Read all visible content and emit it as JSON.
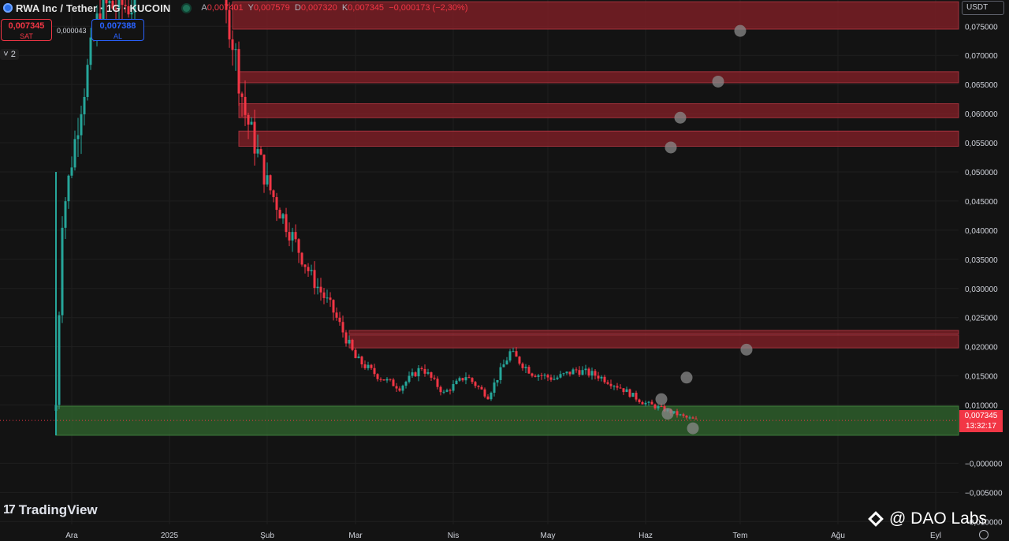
{
  "header": {
    "title": "RWA Inc / Tether · 1G · KUCOIN",
    "ohlc": [
      {
        "k": "A",
        "v": "0,007401"
      },
      {
        "k": "Y",
        "v": "0,007579"
      },
      {
        "k": "D",
        "v": "0,007320"
      },
      {
        "k": "K",
        "v": "0,007345"
      }
    ],
    "change": "−0,000173 (−2,30%)"
  },
  "trade": {
    "sell_price": "0,007345",
    "sell_label": "SAT",
    "spread": "0,000043",
    "buy_price": "0,007388",
    "buy_label": "AL"
  },
  "collapse_label": "2",
  "currency": "USDT",
  "last_price_tag": {
    "price": "0,007345",
    "countdown": "13:32:17"
  },
  "branding": {
    "tv_logo": "TradingView",
    "watermark": "@ DAO Labs"
  },
  "colors": {
    "up": "#26a69a",
    "down": "#f23645",
    "resistance_zone": "#7a1f26",
    "support_zone": "#2c5a2a",
    "background": "#131313"
  },
  "chart_data": {
    "type": "candlestick",
    "y_ticks": [
      {
        "v": 0.075,
        "label": "0,075000"
      },
      {
        "v": 0.07,
        "label": "0,070000"
      },
      {
        "v": 0.065,
        "label": "0,065000"
      },
      {
        "v": 0.06,
        "label": "0,060000"
      },
      {
        "v": 0.055,
        "label": "0,055000"
      },
      {
        "v": 0.05,
        "label": "0,050000"
      },
      {
        "v": 0.045,
        "label": "0,045000"
      },
      {
        "v": 0.04,
        "label": "0,040000"
      },
      {
        "v": 0.035,
        "label": "0,035000"
      },
      {
        "v": 0.03,
        "label": "0,030000"
      },
      {
        "v": 0.025,
        "label": "0,025000"
      },
      {
        "v": 0.02,
        "label": "0,020000"
      },
      {
        "v": 0.015,
        "label": "0,015000"
      },
      {
        "v": 0.01,
        "label": "0,010000"
      },
      {
        "v": 0.0,
        "label": "−0,000000"
      },
      {
        "v": -0.005,
        "label": "−0,005000"
      },
      {
        "v": -0.01,
        "label": "−0,010000"
      }
    ],
    "ylim": [
      -0.0105,
      0.0795
    ],
    "x_ticks": [
      "Ara",
      "2025",
      "Şub",
      "Mar",
      "Nis",
      "May",
      "Haz",
      "Tem",
      "Ağu",
      "Eyl"
    ],
    "resistance_zones": [
      [
        0.0745,
        0.0792
      ],
      [
        0.0653,
        0.0672
      ],
      [
        0.0593,
        0.0617
      ],
      [
        0.0544,
        0.057
      ],
      [
        0.0198,
        0.022
      ],
      [
        0.0222,
        0.0228
      ]
    ],
    "support_zone": [
      0.0048,
      0.0098
    ],
    "markers": [
      {
        "date": "2025-07-01",
        "y": 0.0742
      },
      {
        "date": "2025-06-24",
        "y": 0.0655
      },
      {
        "date": "2025-06-12",
        "y": 0.0593
      },
      {
        "date": "2025-06-09",
        "y": 0.0542
      },
      {
        "date": "2025-07-03",
        "y": 0.0195
      },
      {
        "date": "2025-06-14",
        "y": 0.0147
      },
      {
        "date": "2025-06-06",
        "y": 0.011
      },
      {
        "date": "2025-06-08",
        "y": 0.0085
      },
      {
        "date": "2025-06-16",
        "y": 0.006
      }
    ],
    "last_price": 0.007345,
    "anchors": [
      {
        "date": "2024-11-26",
        "close": 0.01
      },
      {
        "date": "2024-11-28",
        "close": 0.042
      },
      {
        "date": "2024-12-04",
        "close": 0.062
      },
      {
        "date": "2024-12-10",
        "close": 0.078
      },
      {
        "date": "2024-12-20",
        "close": 0.079
      },
      {
        "date": "2025-01-20",
        "close": 0.076
      },
      {
        "date": "2025-01-25",
        "close": 0.06
      },
      {
        "date": "2025-02-01",
        "close": 0.048
      },
      {
        "date": "2025-02-08",
        "close": 0.04
      },
      {
        "date": "2025-02-15",
        "close": 0.032
      },
      {
        "date": "2025-02-22",
        "close": 0.026
      },
      {
        "date": "2025-03-01",
        "close": 0.018
      },
      {
        "date": "2025-03-08",
        "close": 0.015
      },
      {
        "date": "2025-03-15",
        "close": 0.013
      },
      {
        "date": "2025-03-22",
        "close": 0.0165
      },
      {
        "date": "2025-03-29",
        "close": 0.012
      },
      {
        "date": "2025-04-05",
        "close": 0.015
      },
      {
        "date": "2025-04-12",
        "close": 0.0115
      },
      {
        "date": "2025-04-19",
        "close": 0.019
      },
      {
        "date": "2025-04-26",
        "close": 0.0155
      },
      {
        "date": "2025-05-03",
        "close": 0.0145
      },
      {
        "date": "2025-05-10",
        "close": 0.016
      },
      {
        "date": "2025-05-17",
        "close": 0.015
      },
      {
        "date": "2025-05-24",
        "close": 0.013
      },
      {
        "date": "2025-05-31",
        "close": 0.0105
      },
      {
        "date": "2025-06-07",
        "close": 0.0092
      },
      {
        "date": "2025-06-14",
        "close": 0.0078
      },
      {
        "date": "2025-06-18",
        "close": 0.0073
      }
    ]
  }
}
